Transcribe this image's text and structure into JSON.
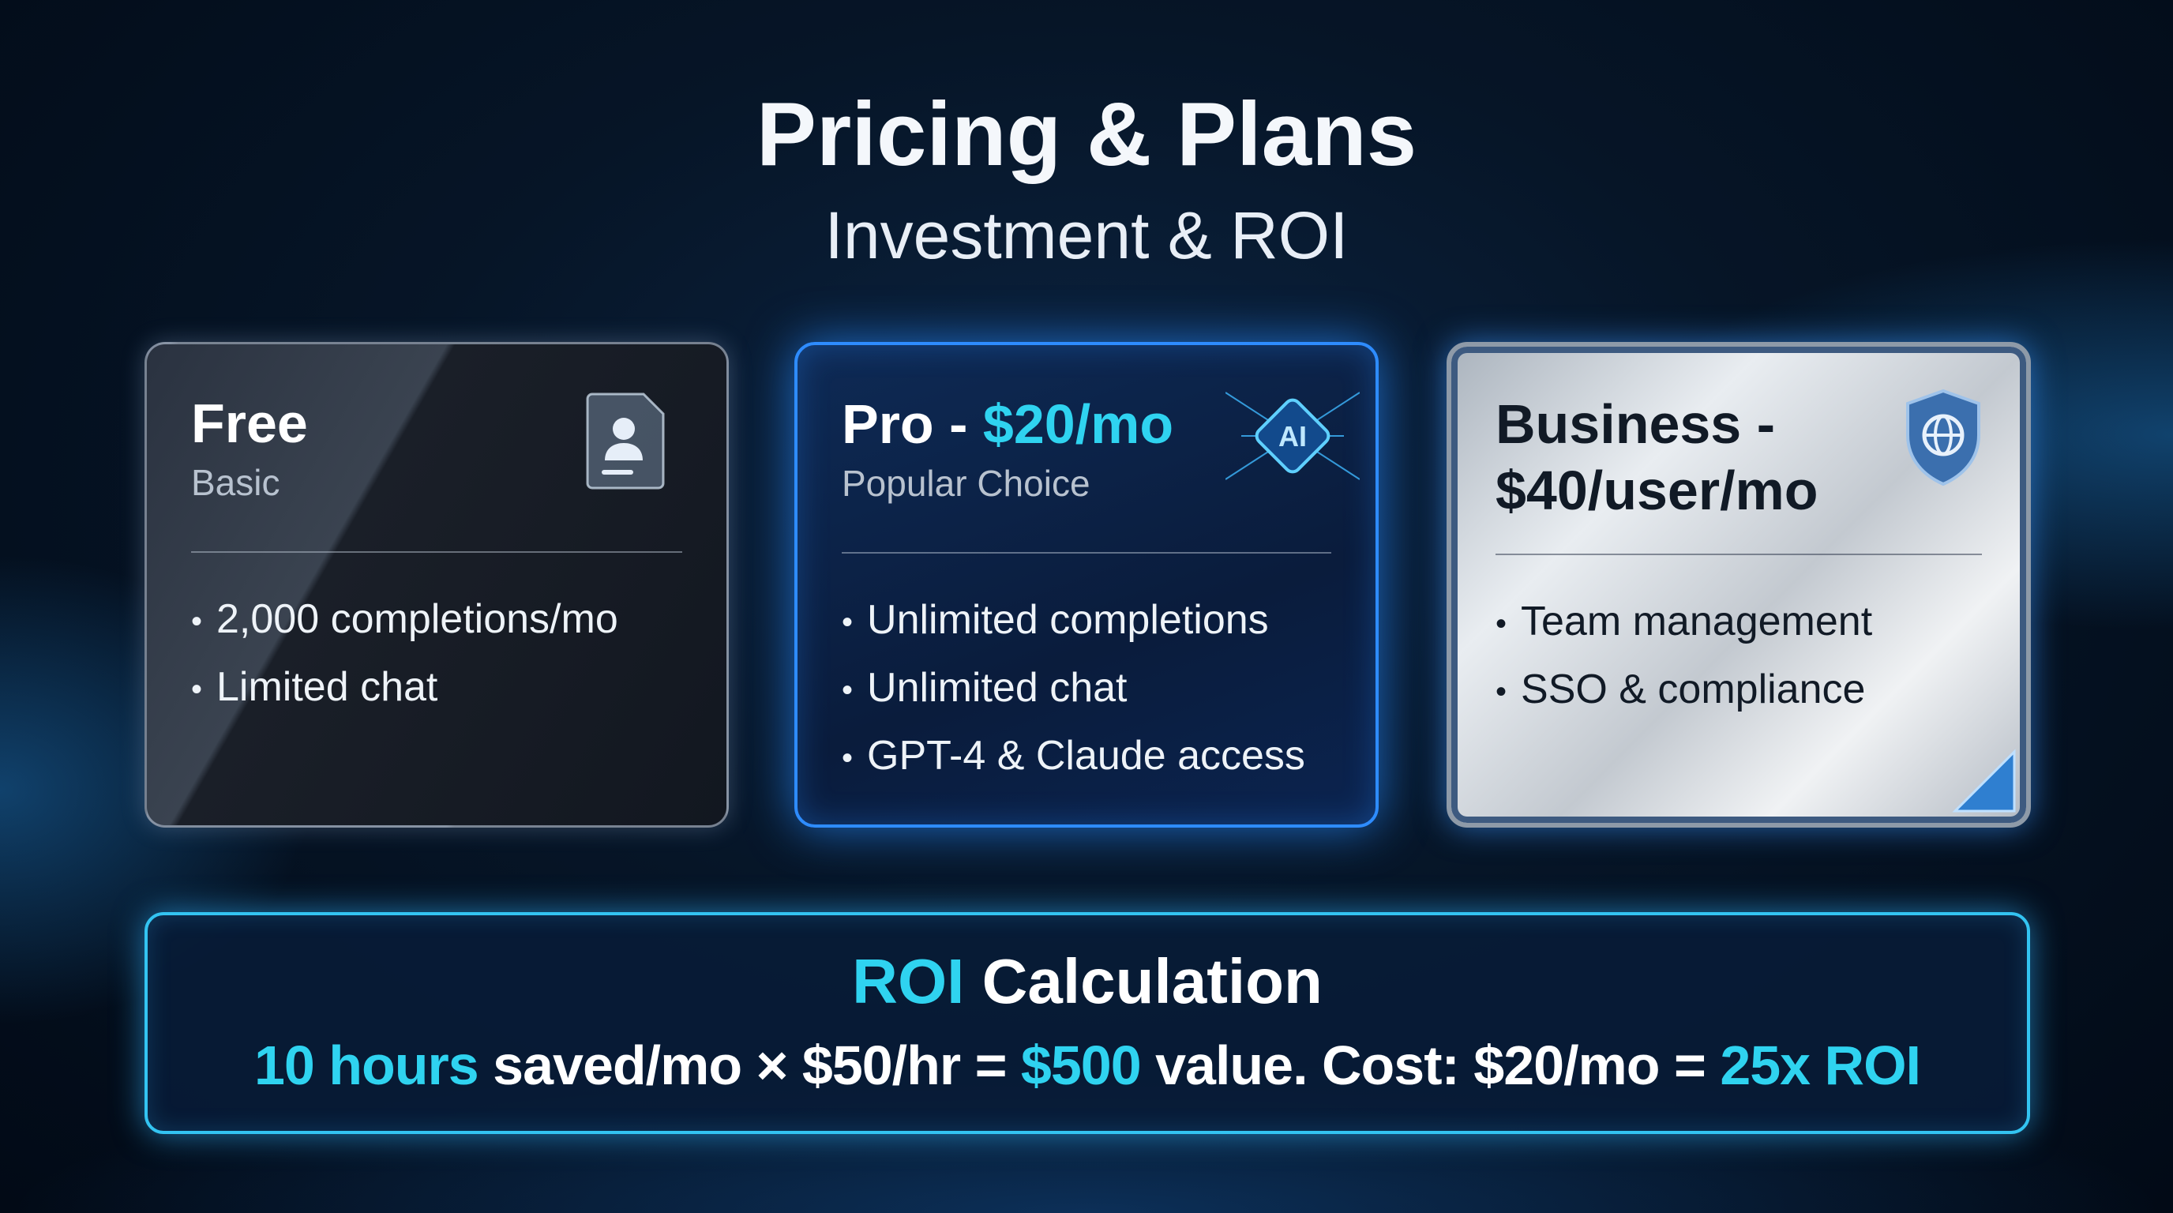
{
  "header": {
    "title": "Pricing & Plans",
    "subtitle": "Investment & ROI"
  },
  "plans": [
    {
      "name": "Free",
      "price": "",
      "subtitle": "Basic",
      "icon": "user-document-icon",
      "features": [
        "2,000 completions/mo",
        "Limited chat"
      ]
    },
    {
      "name": "Pro - ",
      "price": "$20/mo",
      "subtitle": "Popular Choice",
      "icon": "ai-chip-icon",
      "icon_text": "AI",
      "features": [
        "Unlimited completions",
        "Unlimited chat",
        "GPT-4 & Claude access"
      ]
    },
    {
      "name": "Business -",
      "price": "$40/user/mo",
      "icon": "shield-globe-icon",
      "features": [
        "Team management",
        "SSO & compliance"
      ]
    }
  ],
  "roi": {
    "title_accent": "ROI",
    "title_rest": " Calculation",
    "parts": [
      "10 hours",
      " saved/mo × $50/hr = ",
      "$500",
      " value. Cost: $20/mo = ",
      "25x ROI"
    ]
  },
  "colors": {
    "accent": "#2fd3f0",
    "background": "#061527",
    "pro_border": "#2e8cff"
  }
}
